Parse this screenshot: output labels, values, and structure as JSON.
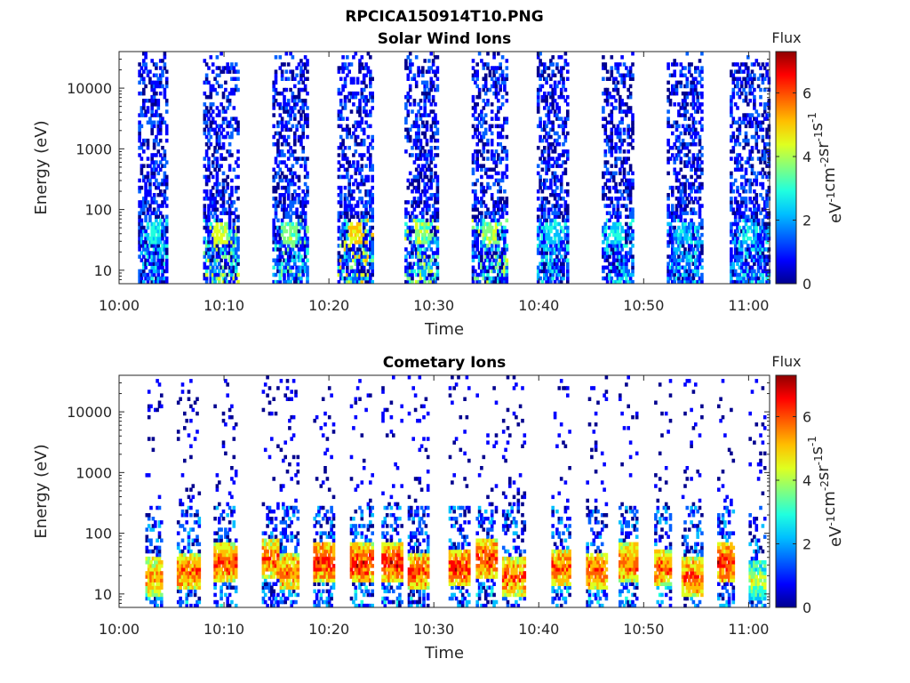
{
  "figure": {
    "title": "RPCICA150914T10.PNG"
  },
  "colormap": [
    "#00008f",
    "#0000ff",
    "#0060ff",
    "#00bfff",
    "#20ffdf",
    "#80ff80",
    "#dfff20",
    "#ffbf00",
    "#ff6000",
    "#ff0000",
    "#8f0000"
  ],
  "chart_data": [
    {
      "type": "heatmap",
      "title": "Solar Wind Ions",
      "xlabel": "Time",
      "ylabel": "Energy (eV)",
      "x_ticks": [
        "10:00",
        "10:10",
        "10:20",
        "10:30",
        "10:40",
        "10:50",
        "11:00"
      ],
      "x_tick_minutes": [
        0,
        10,
        20,
        30,
        40,
        50,
        60
      ],
      "xlim_minutes": [
        0,
        62
      ],
      "y_scale": "log",
      "y_ticks": [
        "10",
        "100",
        "1000",
        "10000"
      ],
      "y_tick_values": [
        10,
        100,
        1000,
        10000
      ],
      "ylim": [
        6,
        40000
      ],
      "colorbar": {
        "title": "Flux",
        "label": "eV-1cm-2sr-1s-1",
        "ticks": [
          "0",
          "2",
          "4",
          "6"
        ],
        "tick_values": [
          0,
          2,
          4,
          6
        ],
        "range": [
          0,
          7.3
        ]
      },
      "bursts": [
        {
          "start": 1.8,
          "end": 4.6,
          "peak": 3.2
        },
        {
          "start": 8.0,
          "end": 11.3,
          "peak": 4.6
        },
        {
          "start": 14.6,
          "end": 17.8,
          "peak": 4.0
        },
        {
          "start": 20.8,
          "end": 24.0,
          "peak": 5.2
        },
        {
          "start": 27.2,
          "end": 30.3,
          "peak": 4.4
        },
        {
          "start": 33.6,
          "end": 37.0,
          "peak": 4.4
        },
        {
          "start": 39.8,
          "end": 42.8,
          "peak": 3.2
        },
        {
          "start": 46.0,
          "end": 49.0,
          "peak": 3.2
        },
        {
          "start": 52.2,
          "end": 55.5,
          "peak": 3.0
        },
        {
          "start": 58.2,
          "end": 62.0,
          "peak": 3.0
        }
      ]
    },
    {
      "type": "heatmap",
      "title": "Cometary Ions",
      "xlabel": "Time",
      "ylabel": "Energy (eV)",
      "x_ticks": [
        "10:00",
        "10:10",
        "10:20",
        "10:30",
        "10:40",
        "10:50",
        "11:00"
      ],
      "x_tick_minutes": [
        0,
        10,
        20,
        30,
        40,
        50,
        60
      ],
      "xlim_minutes": [
        0,
        62
      ],
      "y_scale": "log",
      "y_ticks": [
        "10",
        "100",
        "1000",
        "10000"
      ],
      "y_tick_values": [
        10,
        100,
        1000,
        10000
      ],
      "ylim": [
        6,
        40000
      ],
      "colorbar": {
        "title": "Flux",
        "label": "eV-1cm-2sr-1s-1",
        "ticks": [
          "0",
          "2",
          "4",
          "6"
        ],
        "tick_values": [
          0,
          2,
          4,
          6
        ],
        "range": [
          0,
          7.3
        ]
      },
      "bursts": [
        {
          "start": 2.5,
          "end": 4.0,
          "peak": 6.2,
          "energy": 18
        },
        {
          "start": 5.5,
          "end": 7.6,
          "peak": 6.6,
          "energy": 22
        },
        {
          "start": 9.0,
          "end": 11.0,
          "peak": 6.8,
          "energy": 30
        },
        {
          "start": 13.6,
          "end": 15.0,
          "peak": 6.6,
          "energy": 35
        },
        {
          "start": 15.3,
          "end": 17.0,
          "peak": 6.4,
          "energy": 22
        },
        {
          "start": 18.5,
          "end": 20.3,
          "peak": 7.0,
          "energy": 32
        },
        {
          "start": 22.0,
          "end": 24.0,
          "peak": 7.0,
          "energy": 30
        },
        {
          "start": 25.0,
          "end": 26.8,
          "peak": 7.0,
          "energy": 30
        },
        {
          "start": 27.5,
          "end": 29.4,
          "peak": 6.6,
          "energy": 22
        },
        {
          "start": 31.4,
          "end": 33.4,
          "peak": 6.9,
          "energy": 25
        },
        {
          "start": 34.0,
          "end": 36.0,
          "peak": 6.9,
          "energy": 35
        },
        {
          "start": 36.5,
          "end": 38.7,
          "peak": 6.6,
          "energy": 18
        },
        {
          "start": 41.2,
          "end": 43.0,
          "peak": 6.6,
          "energy": 25
        },
        {
          "start": 44.5,
          "end": 46.4,
          "peak": 6.6,
          "energy": 22
        },
        {
          "start": 47.6,
          "end": 49.4,
          "peak": 6.6,
          "energy": 30
        },
        {
          "start": 51.0,
          "end": 52.6,
          "peak": 6.6,
          "energy": 25
        },
        {
          "start": 53.6,
          "end": 55.6,
          "peak": 6.6,
          "energy": 18
        },
        {
          "start": 57.0,
          "end": 58.6,
          "peak": 7.0,
          "energy": 30
        },
        {
          "start": 60.0,
          "end": 61.6,
          "peak": 5.0,
          "energy": 15
        }
      ]
    }
  ]
}
